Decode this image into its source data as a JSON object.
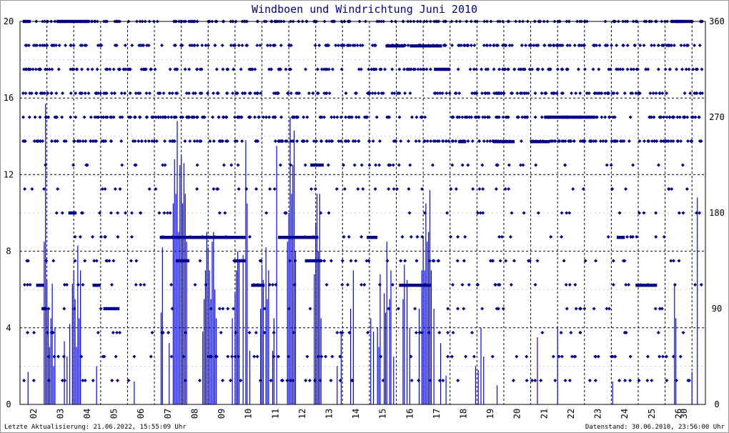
{
  "chart_data": {
    "type": "scatter",
    "title": "Windboen und Windrichtung Juni 2010",
    "xlabel": "",
    "ylabel": "",
    "x_range_days": [
      1.5,
      27.0
    ],
    "ylim": [
      0,
      20
    ],
    "y2lim": [
      0,
      360
    ],
    "yticks": [
      "0",
      "4",
      "8",
      "12",
      "16",
      "20"
    ],
    "y2ticks": [
      "0",
      "90",
      "180",
      "270",
      "360"
    ],
    "xticks": [
      {
        "day": 2,
        "label": "02"
      },
      {
        "day": 3,
        "label": "03"
      },
      {
        "day": 4,
        "label": "04"
      },
      {
        "day": 5,
        "label": "05"
      },
      {
        "day": 6,
        "label": "06"
      },
      {
        "day": 7,
        "label": "07"
      },
      {
        "day": 8,
        "label": "08"
      },
      {
        "day": 9,
        "label": "09"
      },
      {
        "day": 10,
        "label": "10"
      },
      {
        "day": 11,
        "label": "11"
      },
      {
        "day": 12,
        "label": "12"
      },
      {
        "day": 13,
        "label": "13"
      },
      {
        "day": 14,
        "label": "14"
      },
      {
        "day": 15,
        "label": "15"
      },
      {
        "day": 16,
        "label": "16"
      },
      {
        "day": 17,
        "label": "17"
      },
      {
        "day": 18,
        "label": "18"
      },
      {
        "day": 19,
        "label": "19"
      },
      {
        "day": 20,
        "label": "20"
      },
      {
        "day": 21,
        "label": "21"
      },
      {
        "day": 22,
        "label": "22"
      },
      {
        "day": 23,
        "label": "23"
      },
      {
        "day": 24,
        "label": "24"
      },
      {
        "day": 25,
        "label": "25"
      },
      {
        "day": 26,
        "label": "26"
      },
      {
        "day": 26.2,
        "label": "30"
      }
    ],
    "grid": true,
    "series": [
      {
        "role": "gusts",
        "color": "#0000ff",
        "points": [
          [
            1.8,
            1.7
          ],
          [
            2.4,
            8.5
          ],
          [
            2.45,
            15.7
          ],
          [
            2.5,
            6.5
          ],
          [
            2.55,
            5.0
          ],
          [
            2.6,
            3.0
          ],
          [
            2.65,
            4.5
          ],
          [
            2.7,
            6.3
          ],
          [
            2.75,
            2.0
          ],
          [
            2.8,
            4.0
          ],
          [
            3.15,
            3.3
          ],
          [
            3.25,
            2.5
          ],
          [
            3.35,
            4.2
          ],
          [
            3.45,
            6.3
          ],
          [
            3.5,
            7.0
          ],
          [
            3.55,
            5.5
          ],
          [
            3.6,
            3.0
          ],
          [
            3.65,
            8.3
          ],
          [
            3.7,
            4.5
          ],
          [
            3.75,
            7.0
          ],
          [
            4.35,
            2.0
          ],
          [
            5.75,
            1.2
          ],
          [
            6.75,
            4.8
          ],
          [
            6.8,
            8.2
          ],
          [
            7.05,
            3.2
          ],
          [
            7.2,
            10.5
          ],
          [
            7.25,
            12.8
          ],
          [
            7.3,
            11.0
          ],
          [
            7.35,
            14.8
          ],
          [
            7.4,
            9.0
          ],
          [
            7.45,
            12.5
          ],
          [
            7.5,
            13.0
          ],
          [
            7.55,
            10.5
          ],
          [
            7.6,
            12.6
          ],
          [
            7.65,
            11.0
          ],
          [
            7.7,
            8.5
          ],
          [
            8.3,
            3.8
          ],
          [
            8.35,
            5.5
          ],
          [
            8.4,
            7.0
          ],
          [
            8.45,
            9.0
          ],
          [
            8.5,
            8.2
          ],
          [
            8.55,
            7.0
          ],
          [
            8.6,
            5.5
          ],
          [
            8.65,
            8.5
          ],
          [
            8.7,
            9.0
          ],
          [
            8.75,
            6.0
          ],
          [
            8.8,
            4.5
          ],
          [
            9.4,
            4.5
          ],
          [
            9.5,
            5.8
          ],
          [
            9.55,
            7.0
          ],
          [
            9.6,
            8.0
          ],
          [
            9.65,
            7.5
          ],
          [
            9.8,
            7.8
          ],
          [
            9.9,
            13.8
          ],
          [
            9.95,
            10.5
          ],
          [
            10.05,
            2.8
          ],
          [
            10.45,
            5.0
          ],
          [
            10.5,
            7.3
          ],
          [
            10.55,
            6.5
          ],
          [
            10.65,
            8.2
          ],
          [
            10.7,
            5.5
          ],
          [
            10.75,
            7.0
          ],
          [
            10.9,
            2.8
          ],
          [
            10.95,
            4.5
          ],
          [
            11.05,
            13.5
          ],
          [
            11.45,
            8.5
          ],
          [
            11.5,
            10.0
          ],
          [
            11.55,
            15.0
          ],
          [
            11.6,
            11.0
          ],
          [
            11.65,
            12.5
          ],
          [
            11.7,
            14.3
          ],
          [
            11.75,
            8.0
          ],
          [
            12.45,
            6.8
          ],
          [
            12.5,
            9.5
          ],
          [
            12.55,
            11.0
          ],
          [
            12.6,
            8.0
          ],
          [
            12.65,
            11.0
          ],
          [
            12.7,
            4.5
          ],
          [
            13.3,
            2.0
          ],
          [
            13.45,
            3.8
          ],
          [
            13.8,
            5.0
          ],
          [
            13.9,
            7.0
          ],
          [
            14.55,
            4.5
          ],
          [
            14.65,
            3.8
          ],
          [
            14.8,
            4.0
          ],
          [
            14.85,
            3.0
          ],
          [
            14.9,
            6.8
          ],
          [
            15.05,
            5.8
          ],
          [
            15.1,
            4.8
          ],
          [
            15.15,
            8.5
          ],
          [
            15.25,
            5.5
          ],
          [
            15.3,
            7.0
          ],
          [
            15.4,
            2.5
          ],
          [
            15.75,
            5.5
          ],
          [
            15.8,
            7.3
          ],
          [
            15.9,
            6.5
          ],
          [
            16.0,
            4.0
          ],
          [
            16.35,
            5.0
          ],
          [
            16.45,
            7.0
          ],
          [
            16.5,
            8.8
          ],
          [
            16.55,
            7.0
          ],
          [
            16.6,
            10.5
          ],
          [
            16.65,
            8.5
          ],
          [
            16.7,
            9.0
          ],
          [
            16.75,
            11.2
          ],
          [
            16.8,
            7.0
          ],
          [
            16.9,
            5.0
          ],
          [
            17.15,
            3.2
          ],
          [
            17.35,
            1.5
          ],
          [
            18.45,
            2.0
          ],
          [
            18.55,
            1.8
          ],
          [
            18.65,
            4.0
          ],
          [
            18.75,
            2.5
          ],
          [
            19.25,
            1.0
          ],
          [
            20.75,
            3.5
          ],
          [
            21.5,
            4.0
          ],
          [
            23.55,
            1.2
          ],
          [
            25.85,
            6.2
          ],
          [
            25.9,
            4.5
          ],
          [
            26.5,
            1.7
          ],
          [
            26.7,
            10.8
          ]
        ]
      },
      {
        "role": "direction",
        "color": "#00008b",
        "runs": [
          [
            1.6,
            1.9,
            360
          ],
          [
            2.1,
            2.4,
            112
          ],
          [
            2.3,
            2.5,
            90
          ],
          [
            2.9,
            4.1,
            360
          ],
          [
            3.3,
            3.6,
            180
          ],
          [
            4.6,
            5.2,
            90
          ],
          [
            4.2,
            4.5,
            112
          ],
          [
            6.7,
            9.9,
            157
          ],
          [
            7.3,
            7.8,
            135
          ],
          [
            9.5,
            9.9,
            135
          ],
          [
            10.1,
            10.6,
            112
          ],
          [
            11.1,
            12.6,
            157
          ],
          [
            12.1,
            12.7,
            135
          ],
          [
            12.3,
            12.8,
            225
          ],
          [
            14.4,
            14.8,
            157
          ],
          [
            15.1,
            15.8,
            337
          ],
          [
            15.6,
            16.8,
            112
          ],
          [
            16.0,
            17.2,
            337
          ],
          [
            16.9,
            17.5,
            315
          ],
          [
            17.8,
            18.1,
            247
          ],
          [
            19.1,
            19.9,
            247
          ],
          [
            20.5,
            21.2,
            247
          ],
          [
            21.0,
            22.4,
            270
          ],
          [
            22.3,
            22.9,
            270
          ],
          [
            23.7,
            24.0,
            157
          ],
          [
            24.4,
            25.2,
            112
          ],
          [
            25.7,
            26.5,
            360
          ]
        ],
        "levels": [
          22.5,
          45,
          67.5,
          90,
          112.5,
          135,
          157.5,
          180,
          202.5,
          225,
          247.5,
          270,
          292.5,
          315,
          337.5,
          360
        ]
      }
    ]
  },
  "footer": {
    "left": "Letzte Aktualisierung: 21.06.2022, 15:55:09 Uhr",
    "right": "Datenstand: 30.06.2010, 23:56:00 Uhr"
  },
  "colors": {
    "gust": "#0000ff",
    "direction": "#00008b",
    "title": "#00008b",
    "grid": "#000000"
  }
}
